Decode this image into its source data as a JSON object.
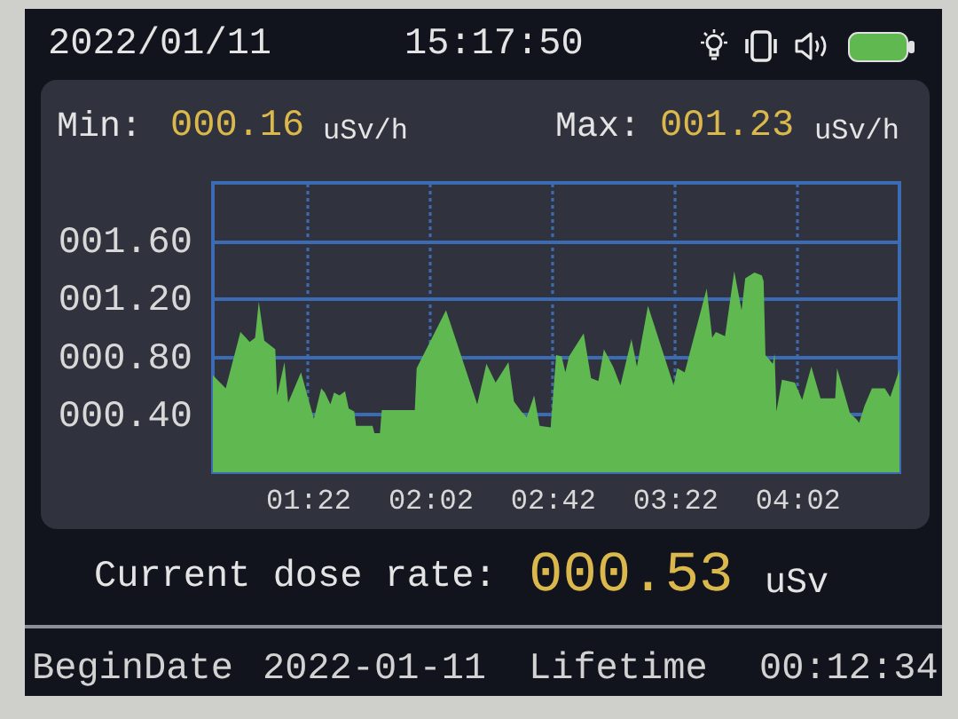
{
  "chart_data": {
    "type": "area",
    "annotations": [
      "2022/01/11",
      "15:17:50",
      "Min:",
      "000.16",
      "uSv/h",
      "Max:",
      "001.23",
      "uSv/h",
      "Current dose rate:",
      "000.53",
      "uSv",
      "BeginDate",
      "2022-01-11",
      "Lifetime",
      "00:12:34"
    ],
    "x": [
      0.85,
      0.92,
      1.0,
      1.03,
      1.05,
      1.08,
      1.1,
      1.13,
      1.19,
      1.2,
      1.24,
      1.26,
      1.33,
      1.4,
      1.44,
      1.46,
      1.49,
      1.51,
      1.54,
      1.57,
      1.59,
      1.62,
      1.63,
      1.72,
      1.73,
      1.76,
      1.77,
      1.95,
      1.96,
      2.12,
      2.29,
      2.34,
      2.39,
      2.46,
      2.49,
      2.53,
      2.56,
      2.6,
      2.63,
      2.69,
      2.72,
      2.75,
      2.77,
      2.79,
      2.87,
      2.91,
      2.95,
      2.98,
      3.03,
      3.07,
      3.13,
      3.16,
      3.22,
      3.36,
      3.38,
      3.42,
      3.54,
      3.57,
      3.59,
      3.64,
      3.69,
      3.73,
      3.75,
      3.8,
      3.84,
      3.85,
      3.86,
      3.9,
      3.91,
      3.92,
      3.95,
      4.02,
      4.06,
      4.11,
      4.16,
      4.24,
      4.25,
      4.32,
      4.36,
      4.37,
      4.4,
      4.44,
      4.51,
      4.54,
      4.59
    ],
    "values": [
      0.67,
      0.58,
      0.97,
      0.93,
      0.9,
      0.93,
      1.18,
      0.91,
      0.85,
      0.53,
      0.76,
      0.48,
      0.69,
      0.37,
      0.58,
      0.55,
      0.47,
      0.55,
      0.53,
      0.56,
      0.44,
      0.42,
      0.32,
      0.32,
      0.27,
      0.27,
      0.43,
      0.43,
      0.72,
      1.12,
      0.47,
      0.75,
      0.62,
      0.76,
      0.49,
      0.42,
      0.38,
      0.53,
      0.32,
      0.31,
      0.81,
      0.8,
      0.69,
      0.8,
      0.96,
      0.65,
      0.63,
      0.85,
      0.73,
      0.6,
      0.92,
      0.73,
      1.15,
      0.6,
      0.72,
      0.69,
      1.27,
      0.93,
      0.97,
      0.94,
      1.39,
      1.12,
      1.34,
      1.38,
      1.36,
      1.32,
      0.81,
      0.75,
      0.82,
      0.42,
      0.64,
      0.62,
      0.5,
      0.73,
      0.51,
      0.51,
      0.72,
      0.41,
      0.36,
      0.34,
      0.46,
      0.58,
      0.58,
      0.52,
      0.71
    ],
    "color": "#5fb950",
    "xlim": [
      0.85,
      4.59
    ],
    "xticks": [
      {
        "value": 1.3667,
        "label": "01:22"
      },
      {
        "value": 2.0333,
        "label": "02:02"
      },
      {
        "value": 2.7,
        "label": "02:42"
      },
      {
        "value": 3.3667,
        "label": "03:22"
      },
      {
        "value": 4.0333,
        "label": "04:02"
      }
    ],
    "ylim": [
      0,
      2.0
    ],
    "yticks": [
      {
        "value": 0.4,
        "label": "000.40"
      },
      {
        "value": 0.8,
        "label": "000.80"
      },
      {
        "value": 1.2,
        "label": "001.20"
      },
      {
        "value": 1.6,
        "label": "001.60"
      }
    ],
    "grid": true
  }
}
